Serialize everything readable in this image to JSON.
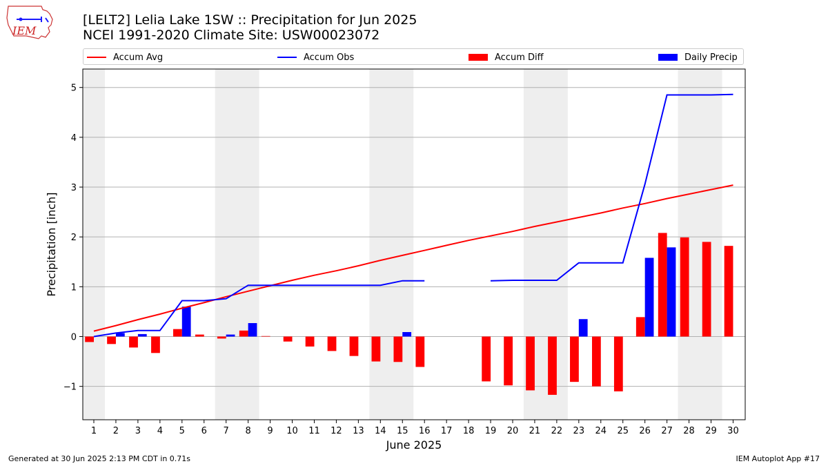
{
  "header": {
    "title_line1": "[LELT2] Lelia Lake 1SW :: Precipitation for Jun 2025",
    "title_line2": "NCEI 1991-2020 Climate Site: USW00023072",
    "logo_text": "IEM"
  },
  "legend": {
    "items": [
      {
        "label": "Accum Avg",
        "kind": "line",
        "color": "#ff0000"
      },
      {
        "label": "Accum Obs",
        "kind": "line",
        "color": "#0000ff"
      },
      {
        "label": "Accum Diff",
        "kind": "box",
        "color": "#ff0000"
      },
      {
        "label": "Daily Precip",
        "kind": "box",
        "color": "#0000ff"
      }
    ]
  },
  "footer": {
    "left": "Generated at 30 Jun 2025 2:13 PM CDT in 0.71s",
    "right": "IEM Autoplot App #17"
  },
  "chart_data": {
    "type": "bar",
    "xlabel": "June 2025",
    "ylabel": "Precipitation [inch]",
    "ylim": [
      -1.67,
      5.37
    ],
    "yticks": [
      -1,
      0,
      1,
      2,
      3,
      4,
      5
    ],
    "days": [
      1,
      2,
      3,
      4,
      5,
      6,
      7,
      8,
      9,
      10,
      11,
      12,
      13,
      14,
      15,
      16,
      17,
      18,
      19,
      20,
      21,
      22,
      23,
      24,
      25,
      26,
      27,
      28,
      29,
      30
    ],
    "weekend_shading": [
      [
        1,
        1
      ],
      [
        7,
        8
      ],
      [
        14,
        15
      ],
      [
        21,
        22
      ],
      [
        28,
        29
      ]
    ],
    "grid": "horizontal",
    "colors": {
      "avg": "#ff0000",
      "obs": "#0000ff",
      "shade": "#eeeeee",
      "grid": "#b0b0b0"
    },
    "series": [
      {
        "name": "Accum Avg",
        "type": "line",
        "values": [
          0.11,
          0.22,
          0.34,
          0.45,
          0.57,
          0.68,
          0.8,
          0.91,
          1.02,
          1.13,
          1.23,
          1.32,
          1.42,
          1.53,
          1.63,
          1.73,
          1.83,
          1.93,
          2.02,
          2.11,
          2.21,
          2.3,
          2.39,
          2.48,
          2.58,
          2.67,
          2.77,
          2.86,
          2.95,
          3.04
        ]
      },
      {
        "name": "Accum Obs",
        "type": "line",
        "values": [
          0.0,
          0.07,
          0.12,
          0.12,
          0.72,
          0.72,
          0.76,
          1.03,
          1.03,
          1.03,
          1.03,
          1.03,
          1.03,
          1.03,
          1.12,
          1.12,
          null,
          null,
          1.12,
          1.13,
          1.13,
          1.13,
          1.48,
          1.48,
          1.48,
          3.06,
          4.85,
          4.85,
          4.85,
          4.86
        ]
      },
      {
        "name": "Accum Diff",
        "type": "bar",
        "values": [
          -0.11,
          -0.15,
          -0.22,
          -0.33,
          0.15,
          0.04,
          -0.04,
          0.12,
          0.01,
          -0.1,
          -0.2,
          -0.29,
          -0.39,
          -0.5,
          -0.51,
          -0.61,
          null,
          null,
          -0.9,
          -0.98,
          -1.08,
          -1.17,
          -0.91,
          -1.0,
          -1.1,
          0.39,
          2.08,
          1.99,
          1.9,
          1.82
        ]
      },
      {
        "name": "Daily Precip",
        "type": "bar",
        "values": [
          0.0,
          0.07,
          0.05,
          0.0,
          0.6,
          0.0,
          0.04,
          0.27,
          0.0,
          0.0,
          0.0,
          0.0,
          0.0,
          0.0,
          0.09,
          0.0,
          null,
          null,
          0.0,
          0.0,
          0.0,
          0.0,
          0.35,
          0.0,
          0.0,
          1.58,
          1.79,
          0.0,
          0.0,
          0.0
        ]
      }
    ]
  }
}
